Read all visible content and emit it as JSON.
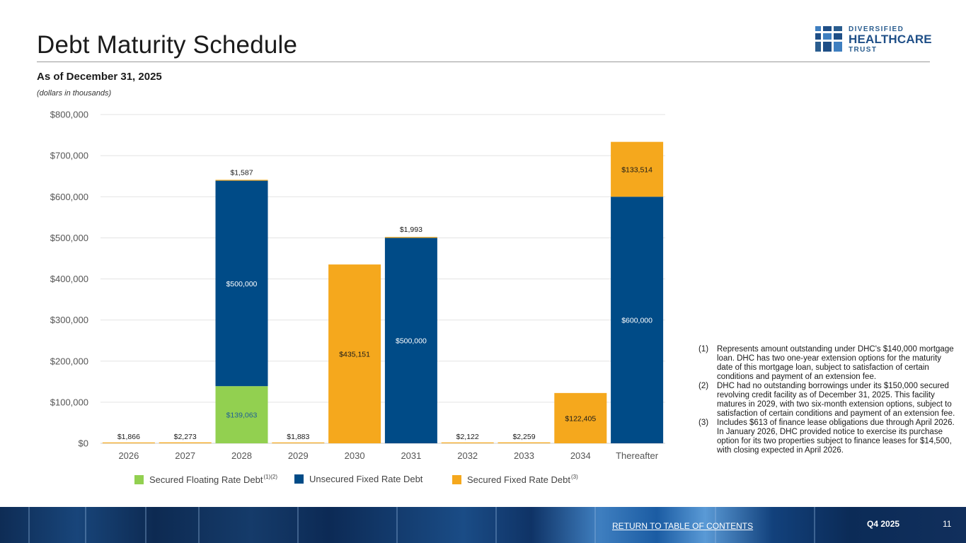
{
  "page": {
    "title": "Debt Maturity Schedule",
    "subtitle": "As of December 31, 2025",
    "units_note": "(dollars in thousands)"
  },
  "logo": {
    "line1": "DIVERSIFIED",
    "line2": "HEALTHCARE",
    "line3": "TRUST"
  },
  "colors": {
    "secured_floating": "#92d050",
    "unsecured_fixed": "#004b87",
    "secured_fixed": "#f5a81d",
    "gridline": "#e3e3e3",
    "axis_text": "#555555"
  },
  "chart_data": {
    "type": "bar",
    "stacked": true,
    "categories": [
      "2026",
      "2027",
      "2028",
      "2029",
      "2030",
      "2031",
      "2032",
      "2033",
      "2034",
      "Thereafter"
    ],
    "series": [
      {
        "key": "secured_floating",
        "name": "Secured Floating Rate Debt",
        "note_ref": "(1)(2)",
        "values": [
          0,
          0,
          139063,
          0,
          0,
          0,
          0,
          0,
          0,
          0
        ]
      },
      {
        "key": "unsecured_fixed",
        "name": "Unsecured Fixed Rate Debt",
        "note_ref": "",
        "values": [
          0,
          0,
          500000,
          0,
          0,
          500000,
          0,
          0,
          0,
          600000
        ]
      },
      {
        "key": "secured_fixed",
        "name": "Secured Fixed Rate Debt",
        "note_ref": "(3)",
        "values": [
          1866,
          2273,
          1587,
          1883,
          435151,
          1993,
          2122,
          2259,
          122405,
          133514
        ]
      }
    ],
    "data_labels": [
      {
        "category": "2026",
        "series": "secured_fixed",
        "text": "$1,866",
        "placement": "above"
      },
      {
        "category": "2027",
        "series": "secured_fixed",
        "text": "$2,273",
        "placement": "above"
      },
      {
        "category": "2028",
        "series": "secured_floating",
        "text": "$139,063",
        "placement": "inside"
      },
      {
        "category": "2028",
        "series": "unsecured_fixed",
        "text": "$500,000",
        "placement": "inside"
      },
      {
        "category": "2028",
        "series": "secured_fixed",
        "text": "$1,587",
        "placement": "above"
      },
      {
        "category": "2029",
        "series": "secured_fixed",
        "text": "$1,883",
        "placement": "above"
      },
      {
        "category": "2030",
        "series": "secured_fixed",
        "text": "$435,151",
        "placement": "inside"
      },
      {
        "category": "2031",
        "series": "unsecured_fixed",
        "text": "$500,000",
        "placement": "inside"
      },
      {
        "category": "2031",
        "series": "secured_fixed",
        "text": "$1,993",
        "placement": "above"
      },
      {
        "category": "2032",
        "series": "secured_fixed",
        "text": "$2,122",
        "placement": "above"
      },
      {
        "category": "2033",
        "series": "secured_fixed",
        "text": "$2,259",
        "placement": "above"
      },
      {
        "category": "2034",
        "series": "secured_fixed",
        "text": "$122,405",
        "placement": "inside"
      },
      {
        "category": "Thereafter",
        "series": "unsecured_fixed",
        "text": "$600,000",
        "placement": "inside"
      },
      {
        "category": "Thereafter",
        "series": "secured_fixed",
        "text": "$133,514",
        "placement": "inside"
      }
    ],
    "ylim": [
      0,
      800000
    ],
    "yticks": [
      0,
      100000,
      200000,
      300000,
      400000,
      500000,
      600000,
      700000,
      800000
    ],
    "ytick_labels": [
      "$0",
      "$100,000",
      "$200,000",
      "$300,000",
      "$400,000",
      "$500,000",
      "$600,000",
      "$700,000",
      "$800,000"
    ],
    "grid": true,
    "legend_position": "bottom",
    "title": "Debt Maturity Schedule",
    "xlabel": "",
    "ylabel": ""
  },
  "footnotes": [
    {
      "num": "(1)",
      "text": "Represents amount outstanding under DHC's $140,000 mortgage loan. DHC has two one-year extension options for the maturity date of this mortgage loan, subject to satisfaction of certain conditions and payment of an extension fee."
    },
    {
      "num": "(2)",
      "text": "DHC had no outstanding borrowings under its $150,000 secured revolving credit facility as of December 31, 2025. This facility matures in 2029, with two six-month extension options, subject to satisfaction of certain conditions and payment of an extension fee."
    },
    {
      "num": "(3)",
      "text": "Includes $613 of finance lease obligations due through April 2026. In January 2026, DHC provided notice to exercise its purchase option for its two properties subject to finance leases for $14,500, with closing expected in April 2026."
    }
  ],
  "footer": {
    "toc_link": "RETURN TO TABLE OF CONTENTS",
    "quarter": "Q4 2025",
    "page_number": "11"
  }
}
